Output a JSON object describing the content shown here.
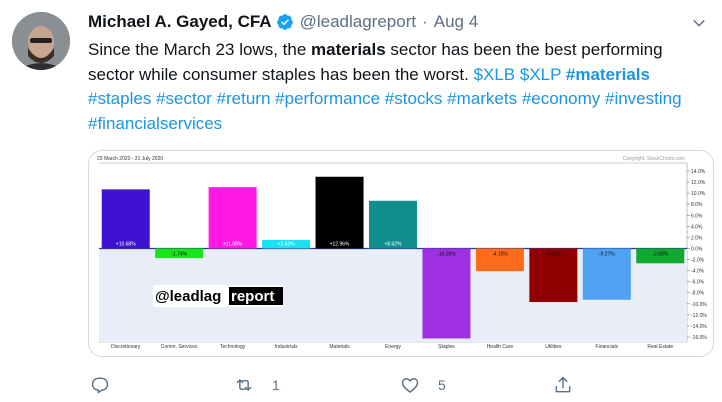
{
  "tweet": {
    "author_name": "Michael A. Gayed, CFA",
    "handle": "@leadlagreport",
    "separator": "·",
    "date": "Aug 4",
    "text": {
      "p1": "Since the March 23 lows, the ",
      "bold1": "materials",
      "p2": " sector has been the best performing sector while consumer staples has been the worst. ",
      "links": [
        "$XLB",
        "$XLP",
        "#materials",
        "#staples",
        "#sector",
        "#return",
        "#performance",
        "#stocks",
        "#markets",
        "#economy",
        "#investing",
        "#financialservices"
      ]
    }
  },
  "actions": {
    "reply_count": "",
    "retweet_count": "1",
    "like_count": "5"
  },
  "chart_data": {
    "type": "bar",
    "date_range": "23 March 2020 - 31 July 2020",
    "copyright": "Copyright, StockCharts.com",
    "watermark_a": "@leadlag",
    "watermark_b": "report",
    "categories": [
      "Discretionary",
      "Comm. Services",
      "Technology",
      "Industrials",
      "Materials",
      "Energy",
      "Staples",
      "Health Care",
      "Utilities",
      "Financials",
      "Real Estate"
    ],
    "values": [
      10.68,
      -1.74,
      11.08,
      1.53,
      12.96,
      8.62,
      -16.26,
      -4.1,
      -9.68,
      -9.27,
      -2.68
    ],
    "value_labels": [
      "+10.68%",
      "-1.74%",
      "+11.08%",
      "+1.53%",
      "+12.96%",
      "+8.62%",
      "-16.26%",
      "-4.10%",
      "-9.68%",
      "-9.27%",
      "-2.68%"
    ],
    "colors": [
      "#3f11d2",
      "#19e319",
      "#ff19e3",
      "#19e3f2",
      "#000000",
      "#118f8f",
      "#9e2fe3",
      "#ff6b19",
      "#8f0000",
      "#4fa2f2",
      "#11a832"
    ],
    "y_ticks": [
      14,
      12,
      10,
      8,
      6,
      4,
      2,
      0,
      -2,
      -4,
      -6,
      -8,
      -10,
      -12,
      -14,
      -16
    ],
    "y_tick_labels": [
      "14.0%",
      "12.0%",
      "10.0%",
      "8.0%",
      "6.0%",
      "4.0%",
      "2.0%",
      "0.0%",
      "-2.0%",
      "-4.0%",
      "-6.0%",
      "-8.0%",
      "-10.0%",
      "-12.0%",
      "-14.0%",
      "-16.0%"
    ],
    "ylim": [
      -16,
      14
    ]
  }
}
